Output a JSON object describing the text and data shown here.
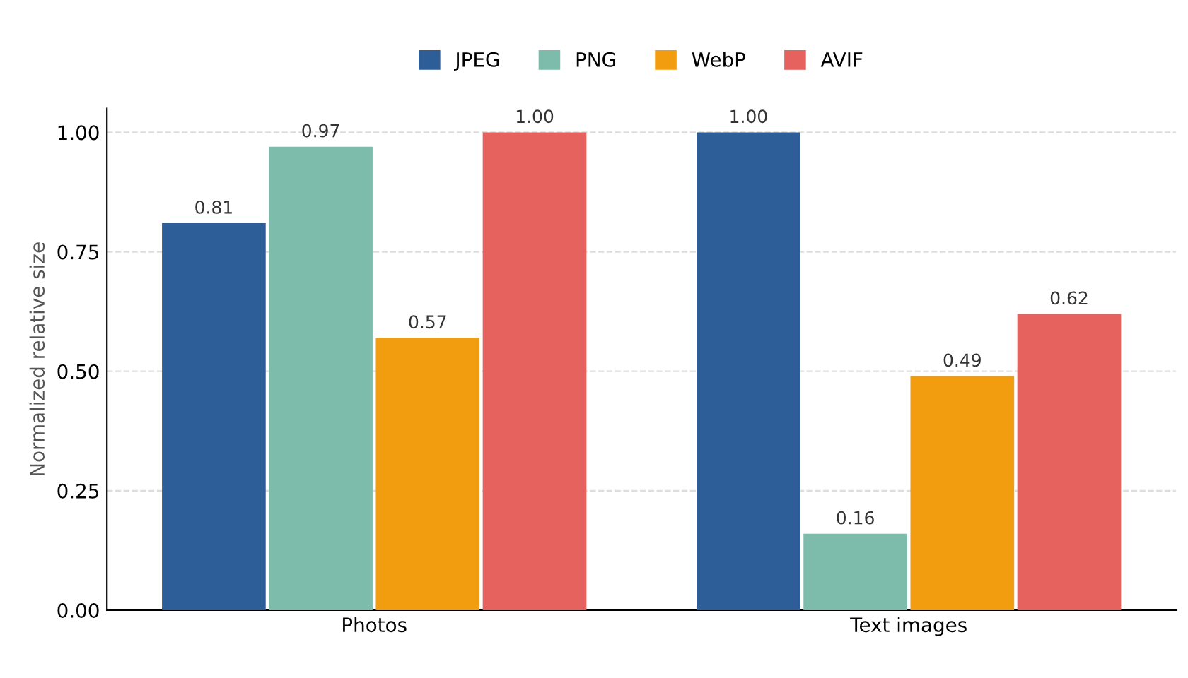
{
  "chart_data": {
    "type": "bar",
    "ylabel": "Normalized relative size",
    "categories": [
      "Photos",
      "Text images"
    ],
    "series": [
      {
        "name": "JPEG",
        "color": "#2e5e97",
        "values": [
          0.81,
          1.0
        ],
        "value_labels": [
          "0.81",
          "1.00"
        ]
      },
      {
        "name": "PNG",
        "color": "#7dbbab",
        "values": [
          0.97,
          0.16
        ],
        "value_labels": [
          "0.97",
          "0.16"
        ]
      },
      {
        "name": "WebP",
        "color": "#f29d0f",
        "values": [
          0.57,
          0.49
        ],
        "value_labels": [
          "0.57",
          "0.49"
        ]
      },
      {
        "name": "AVIF",
        "color": "#e5625f",
        "values": [
          1.0,
          0.62
        ],
        "value_labels": [
          "1.00",
          "0.62"
        ]
      }
    ],
    "ylim": [
      0,
      1.05
    ],
    "yticks": [
      "0.00",
      "0.25",
      "0.50",
      "0.75",
      "1.00"
    ],
    "grid": "y",
    "legend": "top"
  }
}
